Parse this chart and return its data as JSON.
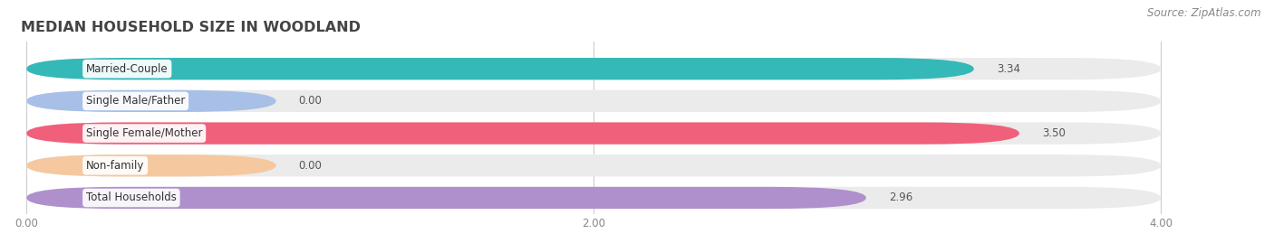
{
  "title": "MEDIAN HOUSEHOLD SIZE IN WOODLAND",
  "source": "Source: ZipAtlas.com",
  "categories": [
    "Married-Couple",
    "Single Male/Father",
    "Single Female/Mother",
    "Non-family",
    "Total Households"
  ],
  "values": [
    3.34,
    0.0,
    3.5,
    0.0,
    2.96
  ],
  "zero_stub": 0.88,
  "bar_colors": [
    "#35b8b8",
    "#a8c0e8",
    "#f0607a",
    "#f5c8a0",
    "#b090cc"
  ],
  "row_bg_color": "#ebebeb",
  "fig_bg_color": "#ffffff",
  "xlim_max": 4.0,
  "xticks": [
    0.0,
    2.0,
    4.0
  ],
  "title_fontsize": 11.5,
  "label_fontsize": 8.5,
  "value_fontsize": 8.5,
  "source_fontsize": 8.5
}
